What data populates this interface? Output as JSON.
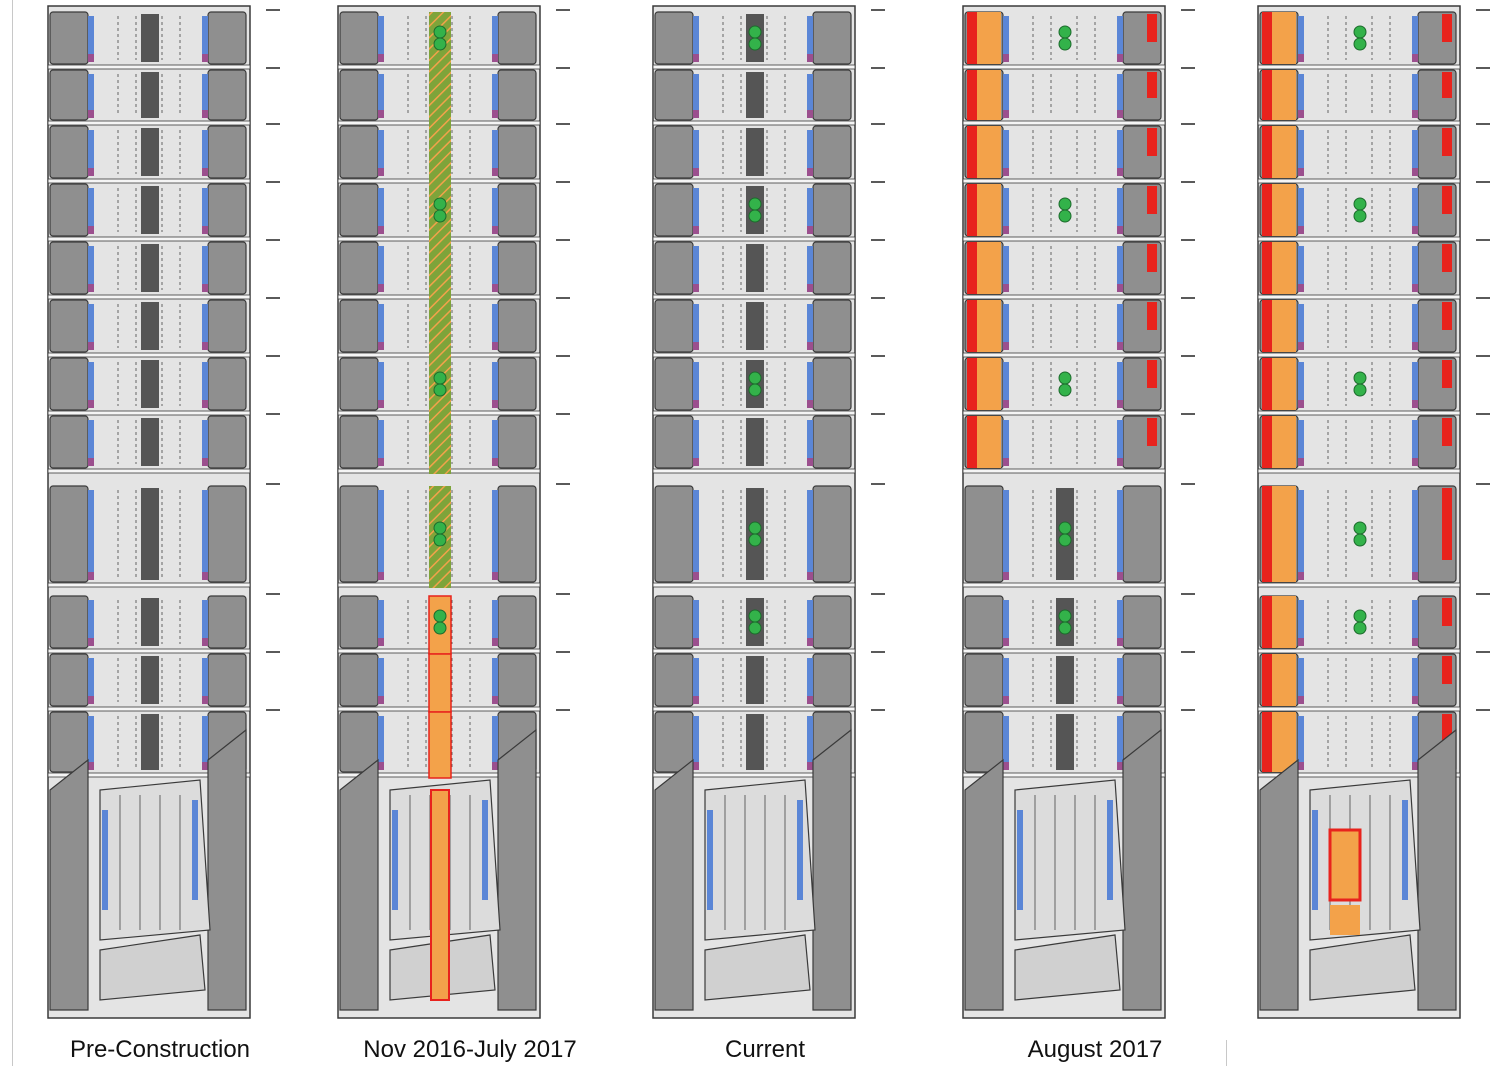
{
  "colors": {
    "block": "#8f8f8f",
    "block_stroke": "#3a3a3a",
    "street": "#e4e4e4",
    "median": "#555555",
    "parking": "#5b86d6",
    "loading": "#9b4f8e",
    "bus_lane": "#f3a24a",
    "barrier": "#e8231d",
    "signal": "#33b24a",
    "hatch_green": "#7ea43a"
  },
  "panels": [
    {
      "caption": "Pre-Construction",
      "phase": "pre-construction"
    },
    {
      "caption": "Nov 2016-July 2017",
      "phase": "construction-median"
    },
    {
      "caption": "Current",
      "phase": "current"
    },
    {
      "caption": "August 2017",
      "phase": "august-2017"
    },
    {
      "caption": "",
      "phase": "future"
    }
  ]
}
